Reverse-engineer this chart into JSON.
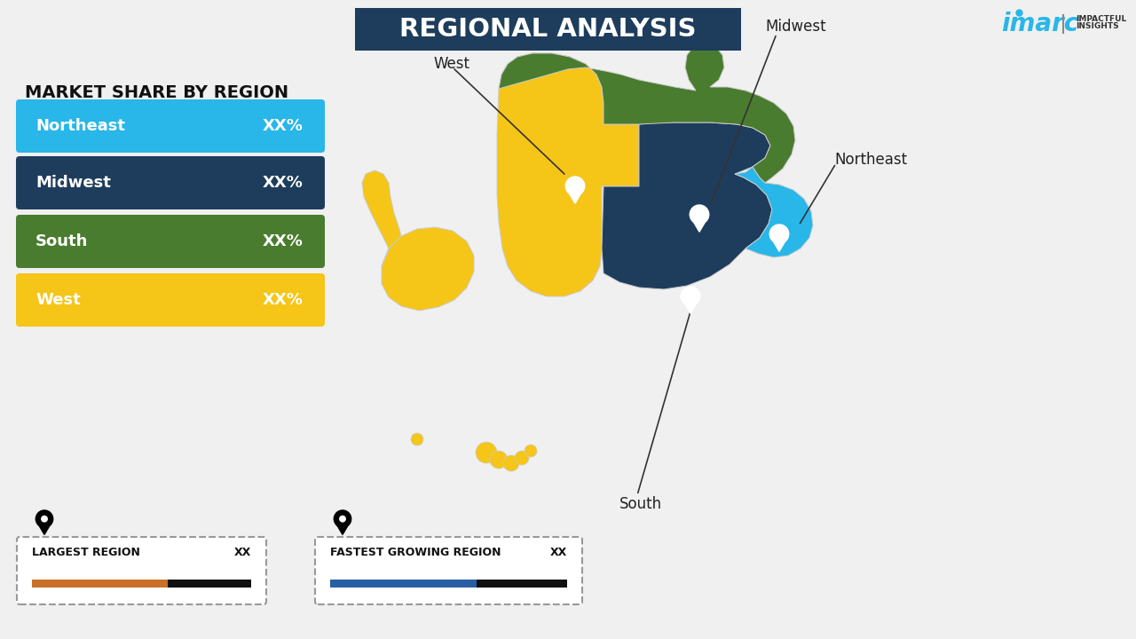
{
  "title": "REGIONAL ANALYSIS",
  "title_bg_color": "#1e3d5c",
  "title_text_color": "#ffffff",
  "bg_color": "#f0f0f0",
  "subtitle": "MARKET SHARE BY REGION",
  "regions": [
    "Northeast",
    "Midwest",
    "South",
    "West"
  ],
  "region_values": [
    "XX%",
    "XX%",
    "XX%",
    "XX%"
  ],
  "region_colors": [
    "#29b6e8",
    "#1e3d5c",
    "#4a7c2f",
    "#f5c518"
  ],
  "legend_largest_label": "LARGEST REGION",
  "legend_fastest_label": "FASTEST GROWING REGION",
  "legend_xx": "XX",
  "bar_orange": "#c87028",
  "bar_dark": "#111111",
  "bar_blue": "#2a5fa5",
  "imarc_blue": "#29b6e8",
  "imarc_dark": "#333333",
  "map_west": "#f5c518",
  "map_midwest": "#1e3d5c",
  "map_south": "#4a7c2f",
  "map_northeast": "#29b6e8",
  "map_edge": "#cccccc",
  "label_color": "#222222",
  "pin_color": "#ffffff"
}
